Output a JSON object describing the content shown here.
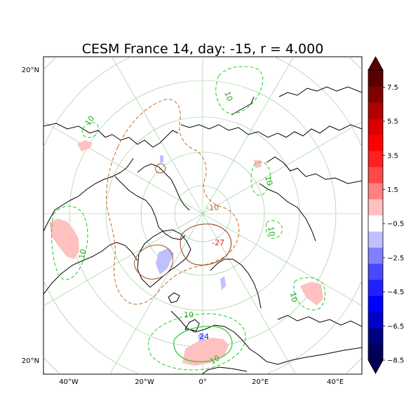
{
  "chart_data": {
    "type": "heatmap",
    "title": "CESM France 14, day: -15, r = 4.000",
    "projection": "north polar stereographic",
    "grid": true,
    "lat_labels": [
      "20°N",
      "20°N"
    ],
    "lon_labels": [
      "40°W",
      "20°W",
      "0°",
      "20°E",
      "40°E"
    ],
    "colorbar": {
      "placement": "right",
      "levels": [
        -8.5,
        -7.5,
        -6.5,
        -5.5,
        -4.5,
        -3.5,
        -2.5,
        -1.5,
        -0.5,
        0.5,
        1.5,
        2.5,
        3.5,
        4.5,
        5.5,
        6.5,
        7.5,
        8.5
      ],
      "tick_labels": [
        "7.5",
        "5.5",
        "3.5",
        "1.5",
        "−0.5",
        "−2.5",
        "−4.5",
        "−6.5",
        "−8.5"
      ],
      "colors": [
        "#00005a",
        "#000080",
        "#0000c8",
        "#0000ff",
        "#2020ff",
        "#4848ff",
        "#8080ff",
        "#c0c0ff",
        "#ffffff",
        "#ffc0c0",
        "#ff8080",
        "#ff4848",
        "#ff2020",
        "#ff0000",
        "#d80000",
        "#b00000",
        "#800000",
        "#5a0000"
      ],
      "extend": "both"
    },
    "contour_labels": [
      {
        "text": "10",
        "color": "#22aa22"
      },
      {
        "text": "10",
        "color": "#22aa22"
      },
      {
        "text": "10",
        "color": "#22aa22"
      },
      {
        "text": "10",
        "color": "#22aa22"
      },
      {
        "text": "10",
        "color": "#22aa22"
      },
      {
        "text": "10",
        "color": "#22aa22"
      },
      {
        "text": "10",
        "color": "#22aa22"
      },
      {
        "text": "10",
        "color": "#22aa22"
      },
      {
        "text": "-10",
        "color": "#cc6622"
      },
      {
        "text": "-27",
        "color": "#dd2222"
      },
      {
        "text": "24",
        "color": "#2222dd"
      }
    ]
  }
}
